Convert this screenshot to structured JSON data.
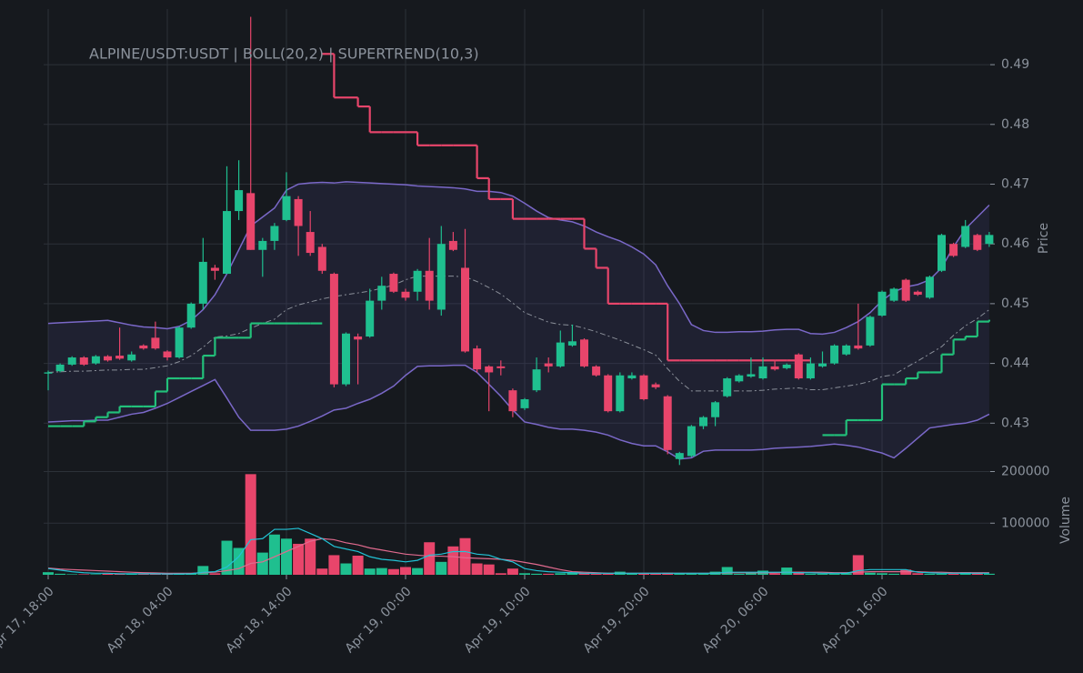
{
  "chart_data": {
    "type": "candlestick",
    "title": "ALPINE/USDT:USDT | BOLL(20,2) | SUPERTREND(10,3)",
    "ylabel": "Price",
    "grid": true,
    "up_color": "#1fbf8f",
    "down_color": "#e8456b",
    "ylim": [
      0.4235,
      0.4993
    ],
    "yticks": [
      0.43,
      0.44,
      0.45,
      0.46,
      0.47,
      0.48,
      0.49
    ],
    "x": [
      "Apr 17, 18:00",
      "Apr 17, 19:00",
      "Apr 17, 20:00",
      "Apr 17, 21:00",
      "Apr 17, 22:00",
      "Apr 17, 23:00",
      "Apr 18, 00:00",
      "Apr 18, 01:00",
      "Apr 18, 02:00",
      "Apr 18, 03:00",
      "Apr 18, 04:00",
      "Apr 18, 05:00",
      "Apr 18, 06:00",
      "Apr 18, 07:00",
      "Apr 18, 08:00",
      "Apr 18, 09:00",
      "Apr 18, 10:00",
      "Apr 18, 11:00",
      "Apr 18, 12:00",
      "Apr 18, 13:00",
      "Apr 18, 14:00",
      "Apr 18, 15:00",
      "Apr 18, 16:00",
      "Apr 18, 17:00",
      "Apr 18, 18:00",
      "Apr 18, 19:00",
      "Apr 18, 20:00",
      "Apr 18, 21:00",
      "Apr 18, 22:00",
      "Apr 18, 23:00",
      "Apr 19, 00:00",
      "Apr 19, 01:00",
      "Apr 19, 02:00",
      "Apr 19, 03:00",
      "Apr 19, 04:00",
      "Apr 19, 05:00",
      "Apr 19, 06:00",
      "Apr 19, 07:00",
      "Apr 19, 08:00",
      "Apr 19, 09:00",
      "Apr 19, 10:00",
      "Apr 19, 11:00",
      "Apr 19, 12:00",
      "Apr 19, 13:00",
      "Apr 19, 14:00",
      "Apr 19, 15:00",
      "Apr 19, 16:00",
      "Apr 19, 17:00",
      "Apr 19, 18:00",
      "Apr 19, 19:00",
      "Apr 19, 20:00",
      "Apr 19, 21:00",
      "Apr 19, 22:00",
      "Apr 19, 23:00",
      "Apr 20, 00:00",
      "Apr 20, 01:00",
      "Apr 20, 02:00",
      "Apr 20, 03:00",
      "Apr 20, 04:00",
      "Apr 20, 05:00",
      "Apr 20, 06:00",
      "Apr 20, 07:00",
      "Apr 20, 08:00",
      "Apr 20, 09:00",
      "Apr 20, 10:00",
      "Apr 20, 11:00",
      "Apr 20, 12:00",
      "Apr 20, 13:00",
      "Apr 20, 14:00",
      "Apr 20, 15:00",
      "Apr 20, 16:00",
      "Apr 20, 17:00",
      "Apr 20, 18:00",
      "Apr 20, 19:00",
      "Apr 20, 20:00",
      "Apr 20, 21:00",
      "Apr 20, 22:00",
      "Apr 20, 23:00",
      "Apr 21, 00:00",
      "Apr 21, 01:00"
    ],
    "xticks": [
      "Apr 17, 18:00",
      "Apr 18, 04:00",
      "Apr 18, 14:00",
      "Apr 19, 00:00",
      "Apr 19, 10:00",
      "Apr 19, 20:00",
      "Apr 20, 06:00",
      "Apr 20, 16:00"
    ],
    "open": [
      0.4383,
      0.4387,
      0.4398,
      0.441,
      0.44,
      0.4412,
      0.4413,
      0.4405,
      0.443,
      0.4443,
      0.442,
      0.441,
      0.446,
      0.45,
      0.456,
      0.455,
      0.4655,
      0.4685,
      0.459,
      0.4605,
      0.464,
      0.4675,
      0.462,
      0.4595,
      0.455,
      0.4365,
      0.4445,
      0.4445,
      0.4505,
      0.455,
      0.452,
      0.452,
      0.4555,
      0.449,
      0.4605,
      0.456,
      0.4425,
      0.4395,
      0.4395,
      0.4355,
      0.4325,
      0.4355,
      0.44,
      0.4395,
      0.443,
      0.444,
      0.4395,
      0.438,
      0.432,
      0.4375,
      0.438,
      0.4365,
      0.4345,
      0.424,
      0.4245,
      0.4295,
      0.431,
      0.4345,
      0.437,
      0.4378,
      0.4375,
      0.4395,
      0.4392,
      0.4415,
      0.4375,
      0.4395,
      0.44,
      0.4415,
      0.443,
      0.443,
      0.448,
      0.4505,
      0.454,
      0.452,
      0.451,
      0.4555,
      0.46,
      0.4595,
      0.4615,
      0.46
    ],
    "high": [
      0.4388,
      0.44,
      0.4412,
      0.4412,
      0.4414,
      0.4414,
      0.446,
      0.442,
      0.4432,
      0.447,
      0.4422,
      0.4462,
      0.4502,
      0.461,
      0.4565,
      0.473,
      0.474,
      0.498,
      0.461,
      0.4635,
      0.472,
      0.468,
      0.4655,
      0.46,
      0.4552,
      0.4452,
      0.445,
      0.4525,
      0.4545,
      0.4552,
      0.4525,
      0.4558,
      0.461,
      0.463,
      0.462,
      0.4625,
      0.443,
      0.4397,
      0.4405,
      0.4358,
      0.4342,
      0.441,
      0.441,
      0.4455,
      0.4465,
      0.4442,
      0.4397,
      0.4382,
      0.4385,
      0.4385,
      0.4382,
      0.4368,
      0.4347,
      0.4252,
      0.4297,
      0.4312,
      0.4337,
      0.4377,
      0.4382,
      0.441,
      0.441,
      0.4405,
      0.44,
      0.4417,
      0.441,
      0.442,
      0.4432,
      0.4432,
      0.45,
      0.448,
      0.4522,
      0.4527,
      0.4542,
      0.4522,
      0.4547,
      0.4617,
      0.4602,
      0.464,
      0.4617,
      0.462
    ],
    "low": [
      0.4355,
      0.4385,
      0.4396,
      0.4396,
      0.4398,
      0.4403,
      0.4406,
      0.4403,
      0.4423,
      0.4423,
      0.4405,
      0.4408,
      0.4458,
      0.449,
      0.454,
      0.455,
      0.464,
      0.459,
      0.4545,
      0.459,
      0.4638,
      0.458,
      0.458,
      0.455,
      0.436,
      0.4362,
      0.4365,
      0.4443,
      0.449,
      0.4518,
      0.4505,
      0.4505,
      0.449,
      0.448,
      0.4588,
      0.4418,
      0.4385,
      0.432,
      0.438,
      0.431,
      0.4322,
      0.4352,
      0.4385,
      0.4393,
      0.4428,
      0.4393,
      0.4378,
      0.4318,
      0.4318,
      0.4373,
      0.4338,
      0.4357,
      0.4248,
      0.423,
      0.4243,
      0.429,
      0.4295,
      0.4343,
      0.4368,
      0.4376,
      0.4373,
      0.4388,
      0.439,
      0.4373,
      0.4373,
      0.4393,
      0.4398,
      0.4413,
      0.4423,
      0.4428,
      0.4478,
      0.4503,
      0.4503,
      0.4513,
      0.4508,
      0.4553,
      0.4578,
      0.4593,
      0.4588,
      0.4595
    ],
    "close": [
      0.4385,
      0.4398,
      0.441,
      0.4398,
      0.4412,
      0.4405,
      0.4408,
      0.4415,
      0.4425,
      0.4425,
      0.441,
      0.446,
      0.45,
      0.457,
      0.4555,
      0.4655,
      0.469,
      0.459,
      0.4605,
      0.463,
      0.468,
      0.463,
      0.4585,
      0.4555,
      0.4365,
      0.445,
      0.444,
      0.4505,
      0.453,
      0.452,
      0.451,
      0.4555,
      0.4505,
      0.46,
      0.459,
      0.442,
      0.439,
      0.4385,
      0.4392,
      0.432,
      0.434,
      0.439,
      0.4395,
      0.4435,
      0.4437,
      0.4395,
      0.438,
      0.432,
      0.438,
      0.438,
      0.434,
      0.436,
      0.4255,
      0.425,
      0.4295,
      0.431,
      0.4335,
      0.4375,
      0.438,
      0.4382,
      0.4395,
      0.439,
      0.4398,
      0.4375,
      0.44,
      0.44,
      0.443,
      0.443,
      0.4425,
      0.4478,
      0.452,
      0.4525,
      0.4505,
      0.4515,
      0.4545,
      0.4615,
      0.458,
      0.463,
      0.459,
      0.4615
    ],
    "bollinger": {
      "color": "#7a68c8",
      "middle_color": "#8a8f99",
      "fill": "#3a3a6a",
      "upper": [
        0.4467,
        0.4468,
        0.4469,
        0.447,
        0.4471,
        0.4472,
        0.4468,
        0.4464,
        0.4461,
        0.446,
        0.4458,
        0.4462,
        0.4472,
        0.449,
        0.4515,
        0.455,
        0.459,
        0.463,
        0.4645,
        0.466,
        0.469,
        0.47,
        0.4702,
        0.4703,
        0.4702,
        0.4704,
        0.4703,
        0.4702,
        0.4701,
        0.47,
        0.4699,
        0.4697,
        0.4696,
        0.4695,
        0.4694,
        0.4692,
        0.4688,
        0.4688,
        0.4686,
        0.468,
        0.4668,
        0.4655,
        0.4644,
        0.464,
        0.4637,
        0.463,
        0.462,
        0.4612,
        0.4605,
        0.4595,
        0.4583,
        0.4565,
        0.453,
        0.45,
        0.4465,
        0.4455,
        0.4452,
        0.4452,
        0.4453,
        0.4453,
        0.4454,
        0.4456,
        0.4457,
        0.4457,
        0.445,
        0.4449,
        0.4452,
        0.446,
        0.447,
        0.4485,
        0.4505,
        0.452,
        0.4528,
        0.4532,
        0.454,
        0.456,
        0.4595,
        0.4625,
        0.4645,
        0.4665
      ],
      "middle": [
        0.4385,
        0.4386,
        0.4387,
        0.4387,
        0.4388,
        0.4389,
        0.4389,
        0.439,
        0.439,
        0.4393,
        0.4396,
        0.4403,
        0.4413,
        0.4427,
        0.4444,
        0.4446,
        0.445,
        0.4459,
        0.4467,
        0.4474,
        0.449,
        0.4498,
        0.4503,
        0.4508,
        0.4512,
        0.4515,
        0.4518,
        0.4521,
        0.4526,
        0.4531,
        0.454,
        0.4546,
        0.4546,
        0.4546,
        0.4546,
        0.4545,
        0.4537,
        0.4527,
        0.4516,
        0.4501,
        0.4485,
        0.4477,
        0.4469,
        0.4465,
        0.4464,
        0.4459,
        0.4453,
        0.4446,
        0.4439,
        0.4431,
        0.4423,
        0.4414,
        0.4391,
        0.437,
        0.4354,
        0.4354,
        0.4354,
        0.4354,
        0.4354,
        0.4354,
        0.4355,
        0.4357,
        0.4358,
        0.4359,
        0.4356,
        0.4356,
        0.4359,
        0.4362,
        0.4365,
        0.437,
        0.4378,
        0.4381,
        0.4393,
        0.4404,
        0.4416,
        0.4428,
        0.4447,
        0.4463,
        0.4475,
        0.449
      ],
      "lower": [
        0.4302,
        0.4303,
        0.4304,
        0.4304,
        0.4305,
        0.4305,
        0.431,
        0.4315,
        0.4318,
        0.4325,
        0.4333,
        0.4343,
        0.4353,
        0.4363,
        0.4373,
        0.4342,
        0.431,
        0.4288,
        0.4288,
        0.4288,
        0.429,
        0.4295,
        0.4303,
        0.4312,
        0.4322,
        0.4325,
        0.4333,
        0.434,
        0.435,
        0.4362,
        0.438,
        0.4395,
        0.4396,
        0.4396,
        0.4397,
        0.4397,
        0.4385,
        0.4365,
        0.4345,
        0.4322,
        0.4302,
        0.4298,
        0.4293,
        0.429,
        0.429,
        0.4288,
        0.4285,
        0.428,
        0.4272,
        0.4266,
        0.4262,
        0.4262,
        0.4252,
        0.424,
        0.4242,
        0.4253,
        0.4255,
        0.4255,
        0.4255,
        0.4255,
        0.4256,
        0.4258,
        0.4259,
        0.426,
        0.4261,
        0.4263,
        0.4265,
        0.4263,
        0.426,
        0.4255,
        0.425,
        0.4242,
        0.4258,
        0.4275,
        0.4292,
        0.4295,
        0.4298,
        0.43,
        0.4305,
        0.4315
      ]
    },
    "supertrend": {
      "up_color": "#22c07a",
      "down_color": "#e8456b",
      "up": [
        0.4295,
        0.4295,
        0.4295,
        0.4303,
        0.431,
        0.4318,
        0.4328,
        0.4328,
        0.4328,
        0.4353,
        0.4375,
        0.4375,
        0.4375,
        0.4413,
        0.4443,
        0.4443,
        0.4443,
        0.4467,
        0.4467,
        0.4467,
        0.4467,
        0.4467,
        0.4467,
        0.4467,
        null,
        null,
        null,
        null,
        null,
        null,
        null,
        null,
        null,
        null,
        null,
        null,
        null,
        null,
        null,
        null,
        null,
        null,
        null,
        null,
        null,
        null,
        null,
        null,
        null,
        null,
        null,
        null,
        null,
        null,
        null,
        null,
        null,
        null,
        null,
        null,
        null,
        null,
        null,
        null,
        null,
        0.428,
        0.428,
        0.4305,
        0.4305,
        0.4305,
        0.4365,
        0.4365,
        0.4375,
        0.4385,
        0.4385,
        0.4415,
        0.444,
        0.4445,
        0.447,
        0.4473
      ],
      "down": [
        null,
        null,
        null,
        null,
        null,
        null,
        null,
        null,
        null,
        null,
        null,
        null,
        null,
        null,
        null,
        null,
        null,
        null,
        null,
        null,
        null,
        null,
        null,
        0.4918,
        0.4845,
        0.4845,
        0.483,
        0.4787,
        0.4787,
        0.4787,
        0.4787,
        0.4765,
        0.4765,
        0.4765,
        0.4765,
        0.4765,
        0.471,
        0.4675,
        0.4675,
        0.4642,
        0.4642,
        0.4642,
        0.4642,
        0.4642,
        0.4642,
        0.4592,
        0.456,
        0.45,
        0.45,
        0.45,
        0.45,
        0.45,
        0.4405,
        0.4405,
        0.4405,
        0.4405,
        0.4405,
        0.4405,
        0.4405,
        0.4405,
        0.4405,
        0.4405,
        0.4405,
        0.4405,
        0.4405,
        null,
        null,
        null,
        null,
        null,
        null,
        null,
        null,
        null,
        null,
        null,
        null,
        null,
        null,
        null
      ]
    },
    "volume": {
      "ylabel": "Volume",
      "ylim": [
        0,
        215000
      ],
      "yticks": [
        100000,
        200000
      ],
      "values": [
        5000,
        2000,
        1000,
        1000,
        1000,
        2000,
        2000,
        1000,
        1000,
        1000,
        1000,
        2000,
        3000,
        17000,
        3000,
        66000,
        52000,
        195000,
        43000,
        78000,
        70000,
        60000,
        70000,
        12000,
        38000,
        22000,
        37000,
        12000,
        13000,
        11000,
        15000,
        13000,
        63000,
        25000,
        55000,
        71000,
        22000,
        20000,
        3000,
        12000,
        3000,
        2000,
        2000,
        3000,
        4000,
        3000,
        2000,
        2000,
        6000,
        2000,
        2000,
        2000,
        4000,
        2000,
        2000,
        2000,
        6000,
        15000,
        2000,
        4000,
        8000,
        3000,
        14000,
        6000,
        2000,
        2000,
        2000,
        3000,
        38000,
        4000,
        3000,
        2000,
        10000,
        3000,
        2000,
        2000,
        2000,
        5000,
        3000,
        2000
      ],
      "ma_fast_color": "#22c3d6",
      "ma_fast": [
        12000,
        9000,
        6000,
        4000,
        3000,
        3000,
        2000,
        2000,
        2000,
        2000,
        1500,
        1500,
        2000,
        5000,
        6000,
        15000,
        35000,
        68000,
        70000,
        88000,
        88000,
        90000,
        80000,
        70000,
        55000,
        50000,
        45000,
        35000,
        30000,
        28000,
        25000,
        28000,
        38000,
        40000,
        45000,
        45000,
        40000,
        38000,
        30000,
        25000,
        12000,
        8000,
        6000,
        5000,
        4000,
        3000,
        3000,
        3000,
        3000,
        3000,
        3000,
        3000,
        3000,
        3000,
        3000,
        3000,
        3000,
        5000,
        5000,
        5000,
        5000,
        5000,
        5000,
        4000,
        4000,
        3000,
        3000,
        3000,
        8000,
        10000,
        10000,
        10000,
        10000,
        5000,
        4000,
        3000,
        3000,
        3000,
        3000,
        3000
      ],
      "ma_slow_color": "#e06a8e",
      "ma_slow": [
        13000,
        11000,
        10000,
        9000,
        8000,
        7000,
        6000,
        5000,
        4000,
        3500,
        3000,
        3000,
        3000,
        4000,
        5000,
        8000,
        12000,
        22000,
        25000,
        35000,
        45000,
        55000,
        65000,
        70000,
        68000,
        62000,
        58000,
        52000,
        48000,
        44000,
        40000,
        38000,
        36000,
        36000,
        35000,
        33000,
        32000,
        31000,
        30000,
        28000,
        24000,
        20000,
        15000,
        10000,
        6000,
        5000,
        4000,
        3000,
        3000,
        3000,
        3000,
        3000,
        3000,
        3000,
        3000,
        3000,
        3000,
        4000,
        4000,
        4000,
        4000,
        4000,
        5000,
        5000,
        5000,
        5000,
        4000,
        4000,
        5000,
        6000,
        6000,
        6000,
        6000,
        6000,
        5000,
        5000,
        4000,
        4000,
        4000,
        4000
      ]
    }
  }
}
